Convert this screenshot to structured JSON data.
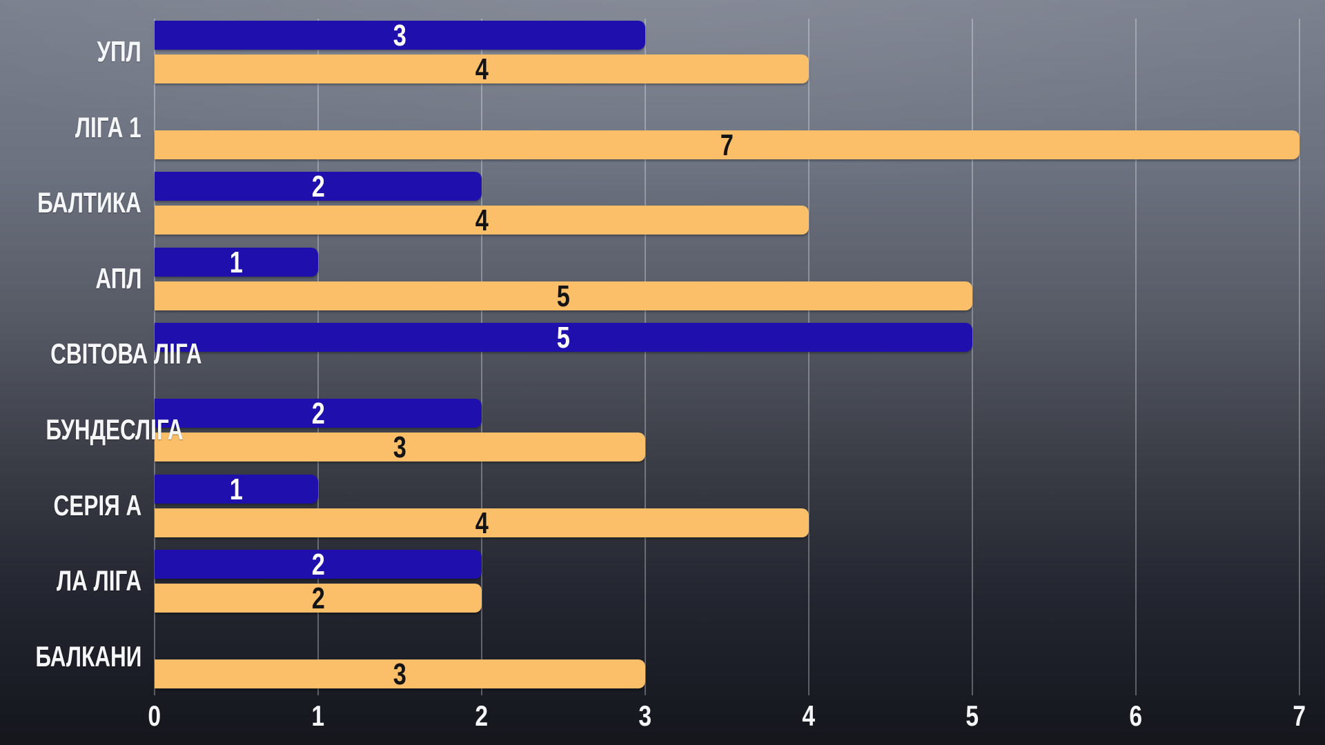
{
  "chart_data": {
    "type": "bar",
    "orientation": "horizontal",
    "title": "",
    "xlabel": "",
    "ylabel": "",
    "categories": [
      "УПЛ",
      "ЛІГА 1",
      "БАЛТИКА",
      "АПЛ",
      "СВІТОВА ЛІГА",
      "БУНДЕСЛІГА",
      "СЕРІЯ А",
      "ЛА ЛІГА",
      "БАЛКАНИ"
    ],
    "series": [
      {
        "name": "series-blue",
        "color": "#1f10ad",
        "label_color": "#ffffff",
        "values": [
          3,
          null,
          2,
          1,
          5,
          2,
          1,
          2,
          null
        ]
      },
      {
        "name": "series-orange",
        "color": "#fbbf6a",
        "label_color": "#141414",
        "values": [
          4,
          7,
          4,
          5,
          null,
          3,
          4,
          2,
          3
        ]
      }
    ],
    "x_ticks": [
      0,
      1,
      2,
      3,
      4,
      5,
      6,
      7
    ],
    "xlim": [
      0,
      7
    ],
    "grid": "vertical",
    "gridline_color": "rgba(255,255,255,0.30)",
    "legend": "none",
    "value_labels": "center"
  },
  "colors": {
    "background_top": "#7a7f8d",
    "background_bottom": "#14161c",
    "bar_blue": "#1f10ad",
    "bar_orange": "#fbbf6a",
    "text_light": "#f5f6f8",
    "text_dark": "#141414"
  }
}
